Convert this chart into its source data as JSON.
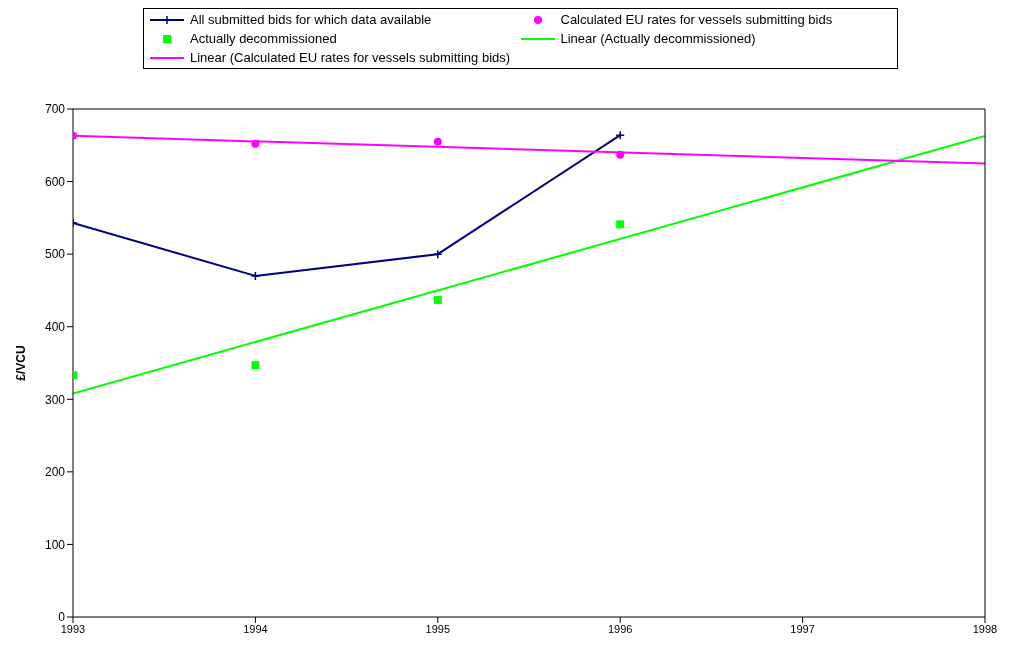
{
  "chart_data": {
    "type": "line",
    "ylabel": "£/VCU",
    "xlim": [
      1993,
      1998
    ],
    "xticks": [
      1993,
      1994,
      1995,
      1996,
      1997,
      1998
    ],
    "ylim": [
      0,
      700
    ],
    "yticks": [
      0,
      100,
      200,
      300,
      400,
      500,
      600,
      700
    ],
    "grid": false,
    "legend": "top",
    "series": [
      {
        "name": "All submitted bids for which data available",
        "color": "#000080",
        "marker": "cross",
        "x": [
          1993,
          1994,
          1995,
          1996
        ],
        "values": [
          543,
          470,
          500,
          664
        ]
      },
      {
        "name": "Calculated EU rates for vessels submitting bids",
        "type": "scatter",
        "color": "#ff00ff",
        "marker": "circle",
        "x": [
          1993,
          1994,
          1995,
          1996
        ],
        "values": [
          663,
          652,
          655,
          637
        ]
      },
      {
        "name": "Actually decommissioned",
        "type": "scatter",
        "color": "#00ff00",
        "marker": "square",
        "x": [
          1993,
          1994,
          1995,
          1996
        ],
        "values": [
          333,
          347,
          437,
          541
        ]
      },
      {
        "name": "Linear (Actually decommissioned)",
        "color": "#00ff00",
        "marker": "none",
        "x": [
          1993,
          1998
        ],
        "values": [
          308,
          663
        ]
      },
      {
        "name": "Linear (Calculated EU rates for vessels submitting bids)",
        "color": "#ff00ff",
        "marker": "none",
        "x": [
          1993,
          1998
        ],
        "values": [
          663,
          625
        ]
      }
    ]
  }
}
